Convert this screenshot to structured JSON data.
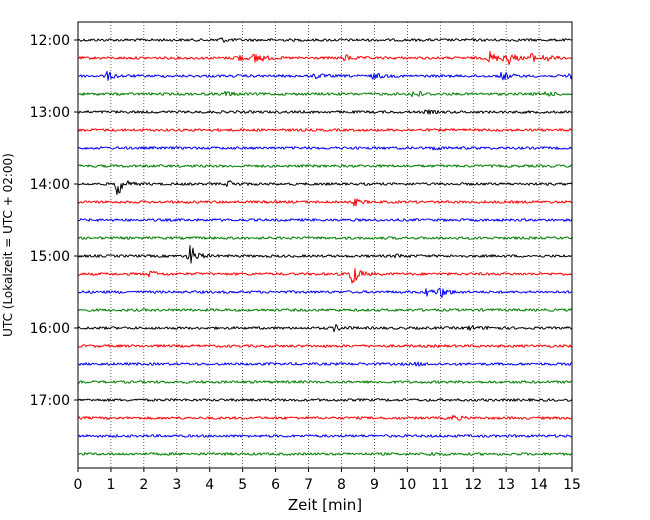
{
  "chart_data": {
    "type": "line",
    "xlabel": "Zeit  [min]",
    "ylabel": "UTC (Lokalzeit = UTC + 02:00)",
    "xlim": [
      0,
      15
    ],
    "x_ticks": [
      "0",
      "1",
      "2",
      "3",
      "4",
      "5",
      "6",
      "7",
      "8",
      "9",
      "10",
      "11",
      "12",
      "13",
      "14",
      "15"
    ],
    "y_ticks": [
      "12:00",
      "13:00",
      "14:00",
      "15:00",
      "16:00",
      "17:00"
    ],
    "grid": "vertical dotted",
    "trace_interval_min": 15,
    "colors": [
      "#000000",
      "#ff0000",
      "#0000ff",
      "#008000"
    ],
    "traces": [
      {
        "start": "12:00",
        "color": "#000000",
        "events": [
          {
            "t": 4.3,
            "amp": 0.3
          }
        ]
      },
      {
        "start": "12:15",
        "color": "#ff0000",
        "events": [
          {
            "t": 4.8,
            "amp": 0.5
          },
          {
            "t": 5.4,
            "amp": 0.9
          },
          {
            "t": 8.1,
            "amp": 0.4
          },
          {
            "t": 12.5,
            "amp": 0.8
          },
          {
            "t": 13.0,
            "amp": 1.1
          },
          {
            "t": 13.7,
            "amp": 0.7
          },
          {
            "t": 14.2,
            "amp": 0.4
          }
        ]
      },
      {
        "start": "12:30",
        "color": "#0000ff",
        "events": [
          {
            "t": 0.9,
            "amp": 0.5
          },
          {
            "t": 7.2,
            "amp": 0.3
          },
          {
            "t": 9.0,
            "amp": 0.4
          },
          {
            "t": 12.9,
            "amp": 0.6
          },
          {
            "t": 14.9,
            "amp": 0.4
          }
        ]
      },
      {
        "start": "12:45",
        "color": "#008000",
        "events": [
          {
            "t": 4.5,
            "amp": 0.3
          },
          {
            "t": 10.2,
            "amp": 0.6
          },
          {
            "t": 14.2,
            "amp": 0.3
          }
        ]
      },
      {
        "start": "13:00",
        "color": "#000000",
        "events": [
          {
            "t": 10.6,
            "amp": 0.2
          }
        ]
      },
      {
        "start": "13:15",
        "color": "#ff0000",
        "events": []
      },
      {
        "start": "13:30",
        "color": "#0000ff",
        "events": [
          {
            "t": 10.8,
            "amp": 0.2
          }
        ]
      },
      {
        "start": "13:45",
        "color": "#008000",
        "events": []
      },
      {
        "start": "14:00",
        "color": "#000000",
        "events": [
          {
            "t": 1.2,
            "amp": 1.5
          },
          {
            "t": 4.6,
            "amp": 0.4
          }
        ]
      },
      {
        "start": "14:15",
        "color": "#ff0000",
        "events": [
          {
            "t": 8.4,
            "amp": 0.4
          }
        ]
      },
      {
        "start": "14:30",
        "color": "#0000ff",
        "events": []
      },
      {
        "start": "14:45",
        "color": "#008000",
        "events": []
      },
      {
        "start": "15:00",
        "color": "#000000",
        "events": [
          {
            "t": 3.4,
            "amp": 1.4
          },
          {
            "t": 9.7,
            "amp": 0.2
          }
        ]
      },
      {
        "start": "15:15",
        "color": "#ff0000",
        "events": [
          {
            "t": 2.2,
            "amp": 0.4
          },
          {
            "t": 8.3,
            "amp": 1.6
          }
        ]
      },
      {
        "start": "15:30",
        "color": "#0000ff",
        "events": [
          {
            "t": 10.6,
            "amp": 0.5
          },
          {
            "t": 11.0,
            "amp": 0.7
          }
        ]
      },
      {
        "start": "15:45",
        "color": "#008000",
        "events": []
      },
      {
        "start": "16:00",
        "color": "#000000",
        "events": [
          {
            "t": 7.8,
            "amp": 0.4
          },
          {
            "t": 11.9,
            "amp": 0.3
          },
          {
            "t": 12.5,
            "amp": 0.2
          }
        ]
      },
      {
        "start": "16:15",
        "color": "#ff0000",
        "events": []
      },
      {
        "start": "16:30",
        "color": "#0000ff",
        "events": [
          {
            "t": 10.3,
            "amp": 0.2
          }
        ]
      },
      {
        "start": "16:45",
        "color": "#008000",
        "events": []
      },
      {
        "start": "17:00",
        "color": "#000000",
        "events": []
      },
      {
        "start": "17:15",
        "color": "#ff0000",
        "events": [
          {
            "t": 11.4,
            "amp": 0.3
          }
        ]
      },
      {
        "start": "17:30",
        "color": "#0000ff",
        "events": []
      },
      {
        "start": "17:45",
        "color": "#008000",
        "events": [
          {
            "t": 10.7,
            "amp": 0.2
          }
        ]
      }
    ]
  }
}
